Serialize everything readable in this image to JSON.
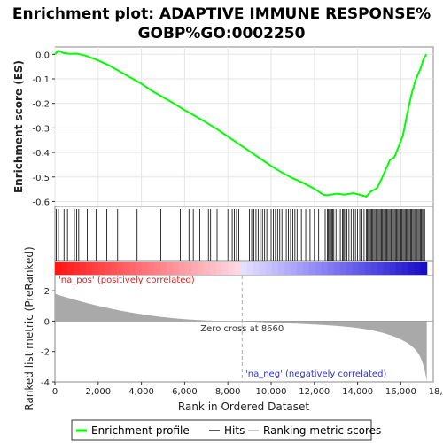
{
  "chart_data": {
    "type": "line",
    "title_line1": "Enrichment plot: ADAPTIVE IMMUNE RESPONSE%",
    "title_line2": "GOBP%GO:0002250",
    "xlabel": "Rank in Ordered Dataset",
    "ylabel_top": "Enrichment score (ES)",
    "ylabel_bottom": "Ranked list metric (PreRanked)",
    "xlim": [
      0,
      17500
    ],
    "x_ticks": [
      0,
      2000,
      4000,
      6000,
      8000,
      10000,
      12000,
      14000,
      16000,
      18000
    ],
    "x_tick_labels": [
      "0",
      "2,000",
      "4,000",
      "6,000",
      "8,000",
      "10,000",
      "12,000",
      "14,000",
      "16,000",
      "18,000"
    ],
    "es_ylim": [
      -0.62,
      0.03
    ],
    "es_ticks": [
      0.0,
      -0.1,
      -0.2,
      -0.3,
      -0.4,
      -0.5,
      -0.6
    ],
    "es_tick_labels": [
      "0.0",
      "-0.1",
      "-0.2",
      "-0.3",
      "-0.4",
      "-0.5",
      "-0.6"
    ],
    "metric_ylim": [
      -4,
      3
    ],
    "metric_ticks": [
      2,
      0,
      -2,
      -4
    ],
    "metric_tick_labels": [
      "2",
      "0",
      "-2",
      "-4"
    ],
    "n_genes": 17200,
    "zero_cross": 8660,
    "zero_cross_label": "Zero cross at 8660",
    "pos_label": "'na_pos' (positively correlated)",
    "neg_label": "'na_neg' (negatively correlated)",
    "es_curve": [
      [
        0,
        0.0
      ],
      [
        150,
        0.015
      ],
      [
        400,
        0.005
      ],
      [
        700,
        0.002
      ],
      [
        1000,
        0.003
      ],
      [
        1400,
        -0.005
      ],
      [
        2000,
        -0.025
      ],
      [
        2500,
        -0.045
      ],
      [
        3000,
        -0.07
      ],
      [
        3500,
        -0.095
      ],
      [
        4000,
        -0.12
      ],
      [
        4500,
        -0.15
      ],
      [
        5000,
        -0.175
      ],
      [
        5500,
        -0.2
      ],
      [
        6000,
        -0.228
      ],
      [
        6500,
        -0.252
      ],
      [
        7000,
        -0.278
      ],
      [
        7500,
        -0.305
      ],
      [
        8000,
        -0.335
      ],
      [
        8500,
        -0.365
      ],
      [
        9000,
        -0.395
      ],
      [
        9500,
        -0.425
      ],
      [
        10000,
        -0.455
      ],
      [
        10500,
        -0.482
      ],
      [
        11000,
        -0.505
      ],
      [
        11500,
        -0.525
      ],
      [
        12000,
        -0.548
      ],
      [
        12400,
        -0.572
      ],
      [
        12600,
        -0.575
      ],
      [
        13000,
        -0.568
      ],
      [
        13400,
        -0.572
      ],
      [
        13800,
        -0.566
      ],
      [
        14200,
        -0.575
      ],
      [
        14400,
        -0.58
      ],
      [
        14600,
        -0.56
      ],
      [
        14900,
        -0.545
      ],
      [
        15100,
        -0.51
      ],
      [
        15300,
        -0.47
      ],
      [
        15500,
        -0.43
      ],
      [
        15700,
        -0.42
      ],
      [
        15900,
        -0.375
      ],
      [
        16100,
        -0.33
      ],
      [
        16300,
        -0.24
      ],
      [
        16500,
        -0.16
      ],
      [
        16700,
        -0.1
      ],
      [
        16900,
        -0.06
      ],
      [
        17050,
        -0.02
      ],
      [
        17180,
        0.0
      ]
    ],
    "hits": [
      60,
      160,
      420,
      580,
      900,
      1000,
      1100,
      1500,
      1900,
      2400,
      2900,
      3800,
      4900,
      5800,
      6200,
      6400,
      6700,
      7100,
      7200,
      7500,
      8000,
      8200,
      8300,
      8400,
      8500,
      9000,
      9100,
      9200,
      9300,
      9400,
      9500,
      9600,
      9700,
      9800,
      10000,
      10100,
      10200,
      10300,
      10400,
      10500,
      10700,
      10800,
      10900,
      11000,
      11100,
      11200,
      11400,
      11600,
      11800,
      12000,
      12200,
      12400,
      12500,
      12600,
      12650,
      12700,
      12750,
      12800,
      12850,
      12900,
      13000,
      13100,
      13200,
      13300,
      13350,
      13400,
      13500,
      13600,
      13700,
      13800,
      13900,
      14000,
      14100,
      14200,
      14300,
      14400,
      14450,
      14500,
      14550,
      14600,
      14650,
      14700,
      14750,
      14800,
      14850,
      14900,
      14950,
      15000,
      15050,
      15100,
      15150,
      15200,
      15250,
      15300,
      15350,
      15400,
      15450,
      15500,
      15550,
      15600,
      15650,
      15700,
      15750,
      15800,
      15850,
      15900,
      15950,
      16000,
      16050,
      16100,
      16150,
      16200,
      16250,
      16300,
      16350,
      16400,
      16450,
      16500,
      16550,
      16600,
      16650,
      16700,
      16750,
      16800,
      16850,
      16900,
      16950,
      17000,
      17050,
      17100
    ],
    "legend": [
      {
        "label": "Enrichment profile",
        "color": "#00ff00"
      },
      {
        "label": "Hits",
        "color": "#555555"
      },
      {
        "label": "Ranking metric scores",
        "color": "#c8c8c8"
      }
    ],
    "colors": {
      "es_line": "#00ff00",
      "metric": "#a9a9a9",
      "pos_text": "#e02020",
      "neg_text": "#3030d0"
    }
  }
}
